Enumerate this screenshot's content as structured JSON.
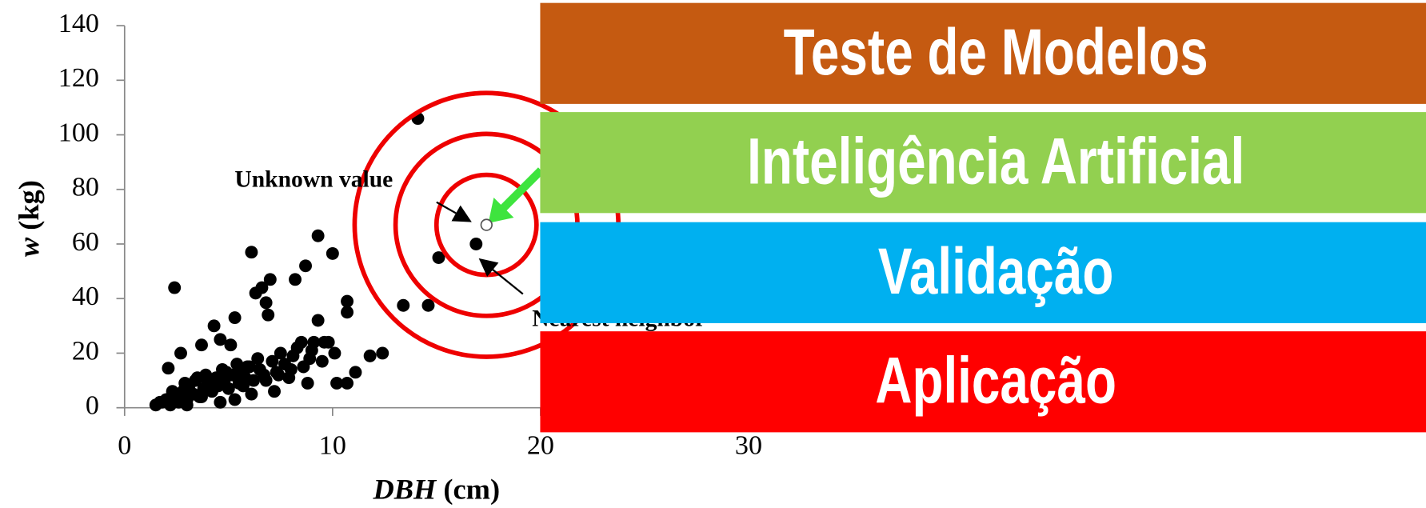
{
  "chart_data": {
    "type": "scatter",
    "xlabel": {
      "var": "DBH",
      "unit": "(cm)"
    },
    "ylabel": {
      "var": "w",
      "unit": "(kg)"
    },
    "xlim": [
      0,
      31
    ],
    "ylim": [
      0,
      140
    ],
    "xticks": [
      0,
      10,
      20,
      30
    ],
    "yticks": [
      0,
      20,
      40,
      60,
      80,
      100,
      120,
      140
    ],
    "color": "#000000",
    "x": [
      14.1,
      9.3,
      10,
      6.1,
      2.4,
      15.1,
      13.4,
      14.6,
      16.9,
      8.7,
      8.2,
      7,
      6.3,
      6.6,
      6.8,
      6.9,
      5.3,
      4.3,
      10.7,
      10.7,
      9.3,
      12.4,
      11.8,
      11.1,
      10.2,
      10.7,
      9.6,
      9.1,
      8.5,
      3.7,
      4.6,
      5.1,
      2.7,
      2.1,
      1.5,
      1.8,
      2.0,
      2.2,
      2.5,
      2.6,
      2.8,
      3.0,
      3.1,
      3.3,
      3.4,
      3.6,
      3.8,
      3.9,
      4.0,
      4.2,
      4.4,
      4.5,
      4.7,
      4.8,
      5.0,
      5.2,
      5.4,
      5.5,
      5.6,
      5.8,
      6.0,
      6.2,
      6.4,
      6.5,
      6.7,
      7.1,
      7.3,
      7.5,
      7.7,
      7.9,
      8.1,
      8.3,
      8.6,
      8.9,
      9.0,
      9.5,
      9.8,
      10.1,
      2.3,
      2.9,
      3.2,
      3.5,
      4.1,
      4.9,
      5.7,
      5.9,
      6.8,
      7.4,
      8.0,
      8.8,
      1.7,
      2.4,
      3.0,
      3.7,
      4.6,
      5.3,
      6.1,
      7.2
    ],
    "y": [
      106,
      63,
      56.5,
      57,
      44,
      55,
      37.5,
      37.5,
      60,
      52,
      47,
      47,
      42,
      44,
      38.5,
      34,
      33,
      30,
      39,
      35,
      32,
      20,
      19,
      13,
      9,
      9,
      24,
      24,
      24,
      23,
      25,
      23,
      20,
      14.5,
      1,
      2,
      3,
      1,
      4,
      2,
      6,
      3,
      8,
      5,
      10,
      4,
      7,
      12,
      9,
      6,
      11,
      8,
      14,
      10,
      7,
      12,
      16,
      9,
      13,
      11,
      15,
      10,
      18,
      14,
      12,
      17,
      13,
      20,
      16,
      11,
      19,
      22,
      15,
      18,
      21,
      17,
      24,
      20,
      6,
      9,
      5,
      11,
      7,
      13,
      8,
      15,
      10,
      12,
      14,
      9,
      2,
      3,
      1,
      4,
      2,
      3,
      5,
      6
    ],
    "unknown_point": {
      "x": 17.4,
      "y": 67
    },
    "annotations": [
      "Unknown value",
      "Nearest neighbor"
    ]
  },
  "banners": [
    {
      "text": "Teste de Modelos",
      "color": "#C55A11"
    },
    {
      "text": "Inteligência Artificial",
      "color": "#92D050"
    },
    {
      "text": "Validação",
      "color": "#00B0F0"
    },
    {
      "text": "Aplicação",
      "color": "#FF0000"
    }
  ]
}
